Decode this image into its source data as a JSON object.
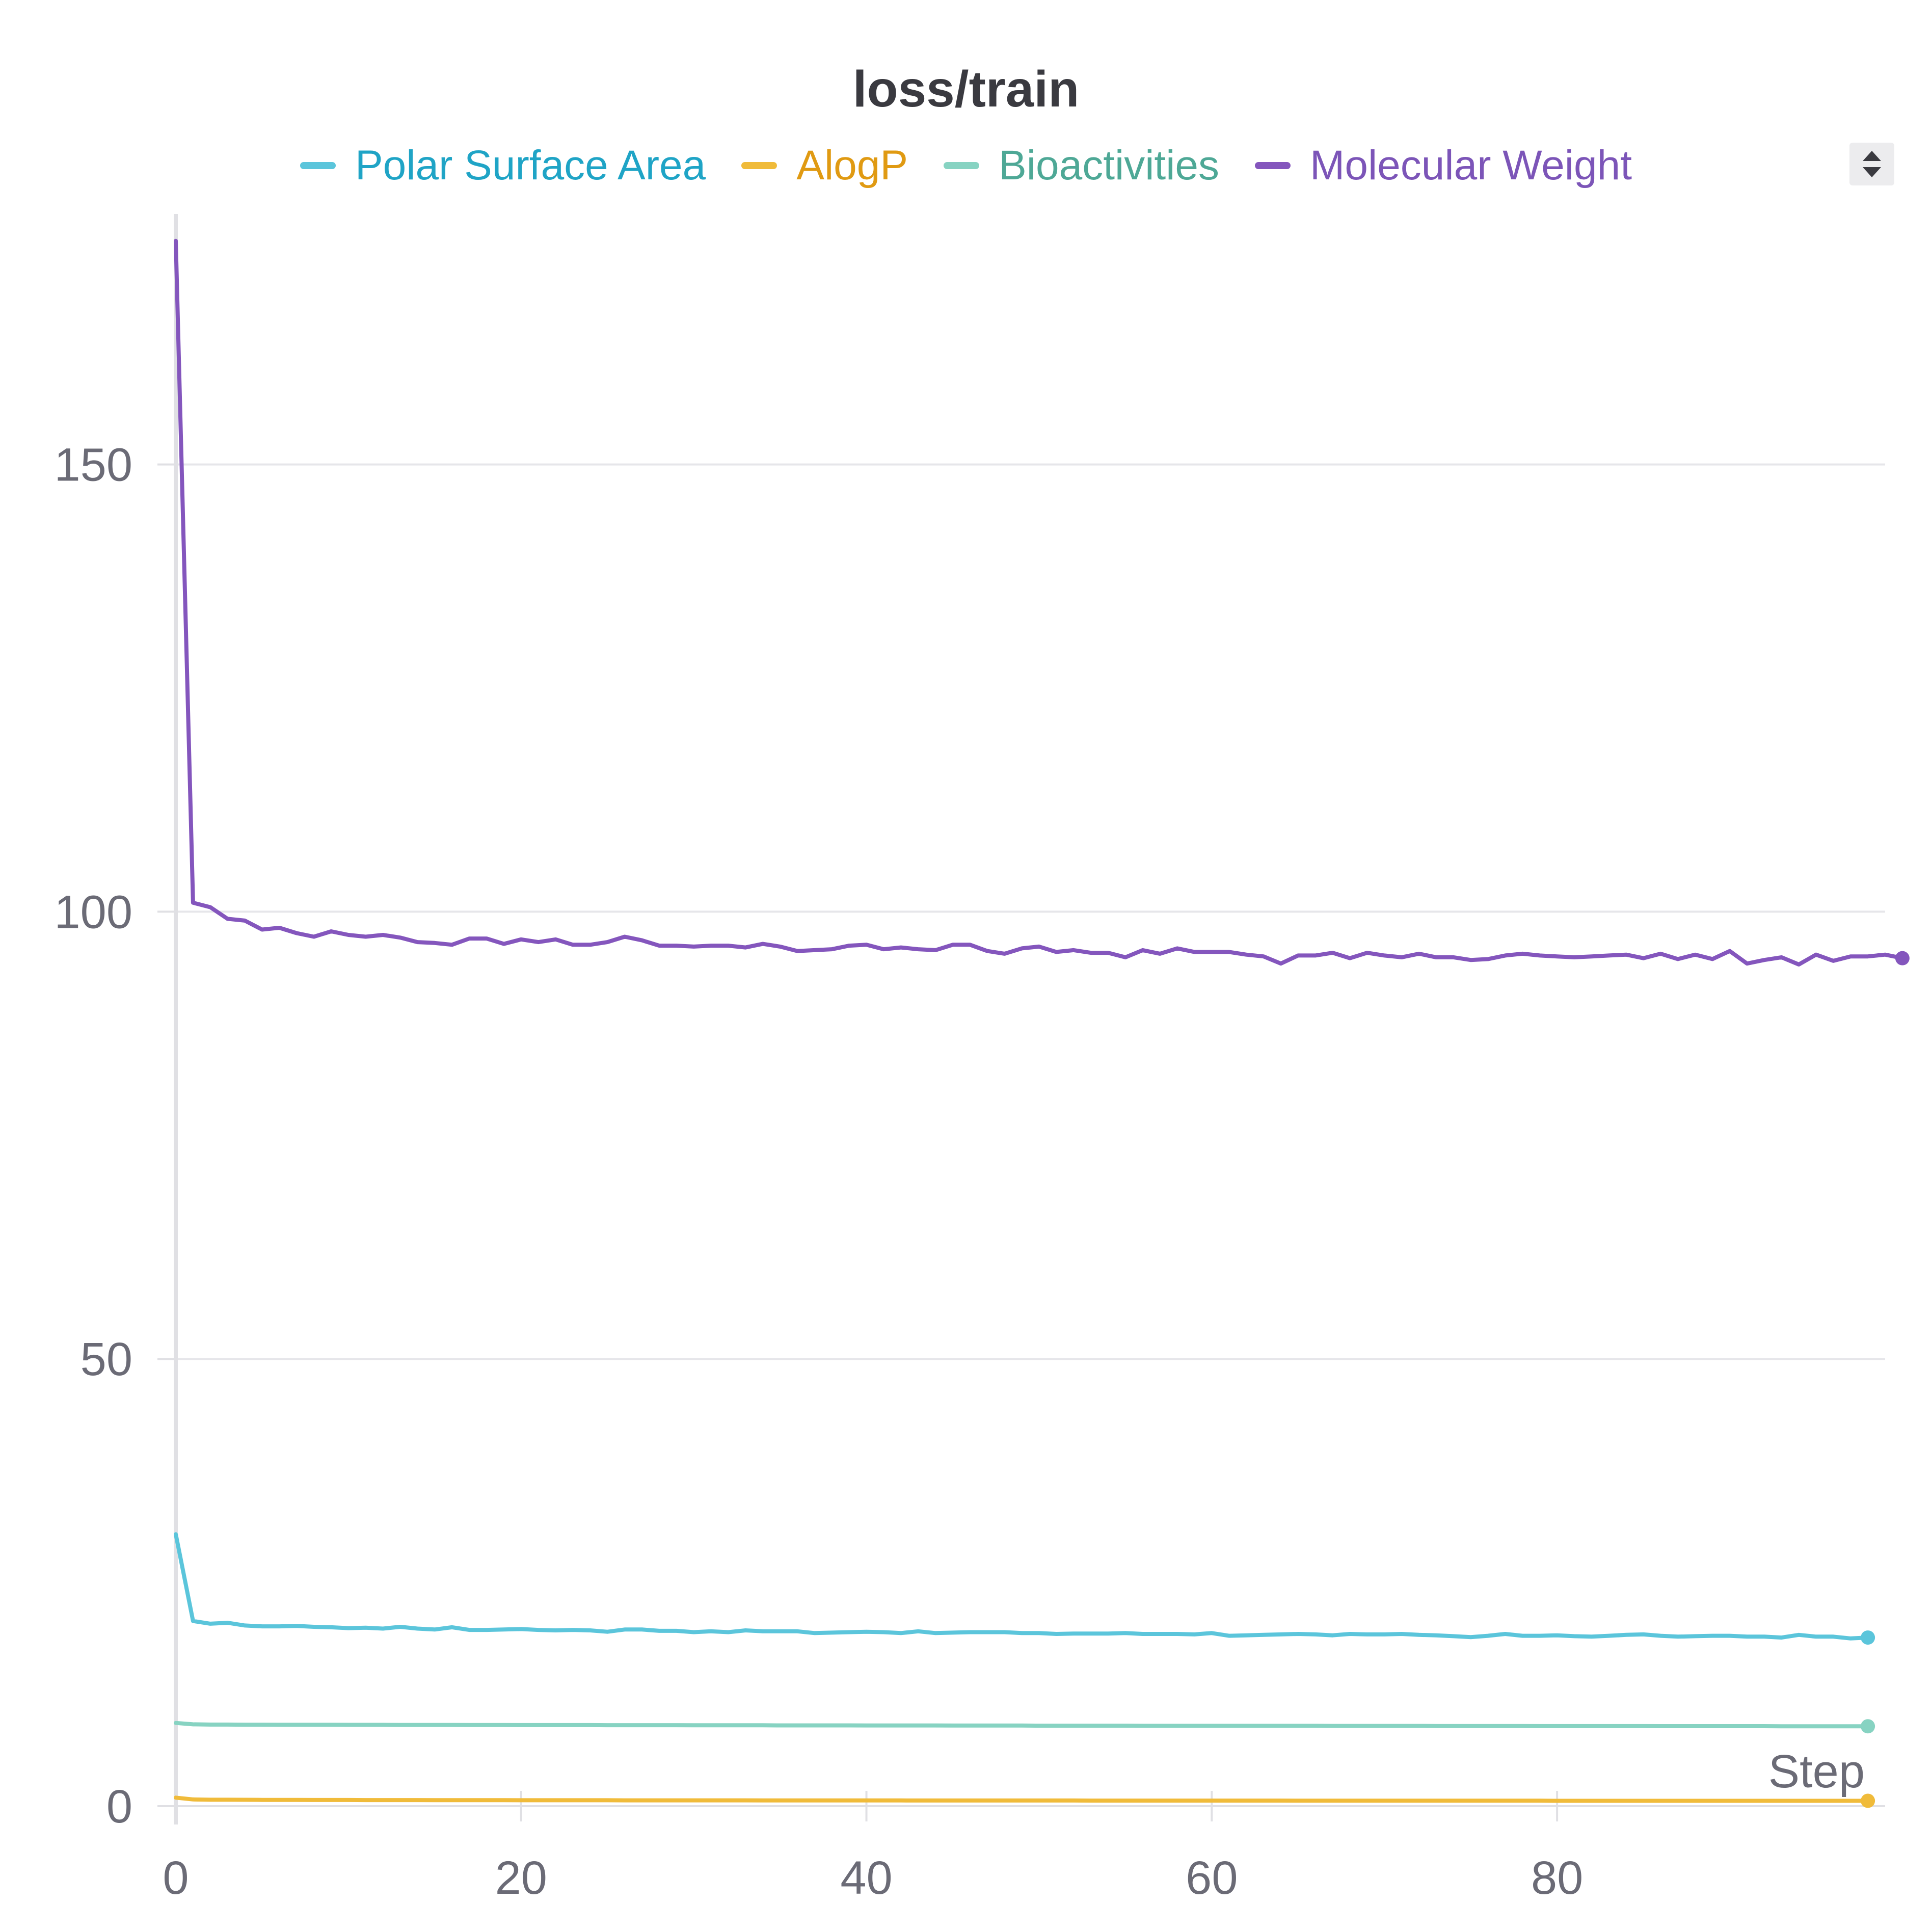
{
  "chart_data": {
    "type": "line",
    "title": "loss/train",
    "xlabel": "Step",
    "ylabel": "",
    "xlim": [
      0,
      99
    ],
    "ylim": [
      0,
      178
    ],
    "x_ticks": [
      0,
      20,
      40,
      60,
      80
    ],
    "y_ticks": [
      0,
      50,
      100,
      150
    ],
    "grid": "horizontal",
    "legend_position": "top",
    "series": [
      {
        "name": "Polar Surface Area",
        "color": "#5bc5db",
        "label_color": "#1fa4c6",
        "values": [
          30.4,
          20.7,
          20.4,
          20.5,
          20.2,
          20.1,
          20.1,
          20.15,
          20.05,
          20.0,
          19.9,
          19.95,
          19.85,
          20.05,
          19.85,
          19.75,
          20.0,
          19.7,
          19.7,
          19.75,
          19.8,
          19.7,
          19.65,
          19.7,
          19.65,
          19.5,
          19.75,
          19.75,
          19.6,
          19.6,
          19.45,
          19.55,
          19.45,
          19.65,
          19.55,
          19.55,
          19.55,
          19.35,
          19.4,
          19.45,
          19.5,
          19.45,
          19.35,
          19.55,
          19.35,
          19.4,
          19.45,
          19.45,
          19.45,
          19.35,
          19.35,
          19.25,
          19.3,
          19.3,
          19.3,
          19.35,
          19.25,
          19.25,
          19.25,
          19.2,
          19.35,
          19.05,
          19.1,
          19.15,
          19.2,
          19.25,
          19.2,
          19.1,
          19.25,
          19.2,
          19.2,
          19.25,
          19.15,
          19.1,
          19.0,
          18.9,
          19.05,
          19.25,
          19.05,
          19.05,
          19.1,
          19.0,
          18.95,
          19.05,
          19.15,
          19.2,
          19.05,
          18.95,
          19.0,
          19.05,
          19.05,
          18.95,
          18.95,
          18.85,
          19.15,
          18.95,
          18.95,
          18.75,
          18.85
        ]
      },
      {
        "name": "AlogP",
        "color": "#f0bb3a",
        "label_color": "#e09a12",
        "values": [
          0.95,
          0.75,
          0.72,
          0.72,
          0.71,
          0.7,
          0.7,
          0.7,
          0.69,
          0.69,
          0.69,
          0.68,
          0.68,
          0.68,
          0.68,
          0.67,
          0.67,
          0.67,
          0.67,
          0.67,
          0.66,
          0.66,
          0.66,
          0.66,
          0.66,
          0.66,
          0.65,
          0.65,
          0.65,
          0.65,
          0.65,
          0.65,
          0.65,
          0.65,
          0.64,
          0.64,
          0.64,
          0.64,
          0.64,
          0.64,
          0.64,
          0.64,
          0.64,
          0.63,
          0.63,
          0.63,
          0.63,
          0.63,
          0.63,
          0.63,
          0.63,
          0.63,
          0.63,
          0.62,
          0.62,
          0.62,
          0.62,
          0.62,
          0.62,
          0.62,
          0.62,
          0.62,
          0.62,
          0.62,
          0.62,
          0.61,
          0.61,
          0.61,
          0.61,
          0.61,
          0.61,
          0.61,
          0.61,
          0.61,
          0.61,
          0.61,
          0.61,
          0.61,
          0.61,
          0.61,
          0.6,
          0.6,
          0.6,
          0.6,
          0.6,
          0.6,
          0.6,
          0.6,
          0.6,
          0.6,
          0.6,
          0.6,
          0.6,
          0.6,
          0.6,
          0.6,
          0.6,
          0.6,
          0.6
        ]
      },
      {
        "name": "Bioactivities",
        "color": "#87d3c2",
        "label_color": "#4ea896",
        "values": [
          9.3,
          9.15,
          9.12,
          9.12,
          9.11,
          9.11,
          9.1,
          9.1,
          9.1,
          9.1,
          9.09,
          9.09,
          9.09,
          9.08,
          9.08,
          9.08,
          9.08,
          9.07,
          9.07,
          9.07,
          9.06,
          9.06,
          9.06,
          9.06,
          9.06,
          9.05,
          9.05,
          9.05,
          9.05,
          9.05,
          9.04,
          9.04,
          9.04,
          9.04,
          9.04,
          9.03,
          9.03,
          9.03,
          9.03,
          9.03,
          9.02,
          9.02,
          9.02,
          9.02,
          9.02,
          9.01,
          9.01,
          9.01,
          9.01,
          9.01,
          9.0,
          9.0,
          9.0,
          9.0,
          9.0,
          9.0,
          8.99,
          8.99,
          8.99,
          8.99,
          8.99,
          8.98,
          8.98,
          8.98,
          8.98,
          8.98,
          8.98,
          8.97,
          8.97,
          8.97,
          8.97,
          8.97,
          8.97,
          8.96,
          8.96,
          8.96,
          8.96,
          8.96,
          8.96,
          8.95,
          8.95,
          8.95,
          8.95,
          8.95,
          8.95,
          8.95,
          8.94,
          8.94,
          8.94,
          8.94,
          8.94,
          8.94,
          8.94,
          8.93,
          8.93,
          8.93,
          8.93,
          8.93,
          8.93
        ]
      },
      {
        "name": "Molecular Weight",
        "color": "#8456bd",
        "label_color": "#7c55b8",
        "values": [
          175.0,
          101.0,
          100.5,
          99.2,
          99.0,
          98.0,
          98.2,
          97.6,
          97.2,
          97.8,
          97.4,
          97.2,
          97.4,
          97.1,
          96.6,
          96.5,
          96.3,
          97.0,
          97.0,
          96.4,
          96.9,
          96.6,
          96.9,
          96.3,
          96.3,
          96.6,
          97.2,
          96.8,
          96.2,
          96.2,
          96.1,
          96.2,
          96.2,
          96.0,
          96.4,
          96.1,
          95.6,
          95.7,
          95.8,
          96.2,
          96.3,
          95.8,
          96.0,
          95.8,
          95.7,
          96.3,
          96.3,
          95.6,
          95.3,
          95.9,
          96.1,
          95.5,
          95.7,
          95.4,
          95.4,
          94.9,
          95.7,
          95.3,
          95.9,
          95.5,
          95.5,
          95.5,
          95.2,
          95.0,
          94.2,
          95.1,
          95.1,
          95.4,
          94.8,
          95.4,
          95.1,
          94.9,
          95.3,
          94.9,
          94.9,
          94.6,
          94.7,
          95.1,
          95.3,
          95.1,
          95.0,
          94.9,
          95.0,
          95.1,
          95.2,
          94.8,
          95.3,
          94.7,
          95.2,
          94.7,
          95.6,
          94.2,
          94.6,
          94.9,
          94.1,
          95.2,
          94.5,
          95.0,
          95.0,
          95.2,
          94.8
        ]
      }
    ]
  }
}
